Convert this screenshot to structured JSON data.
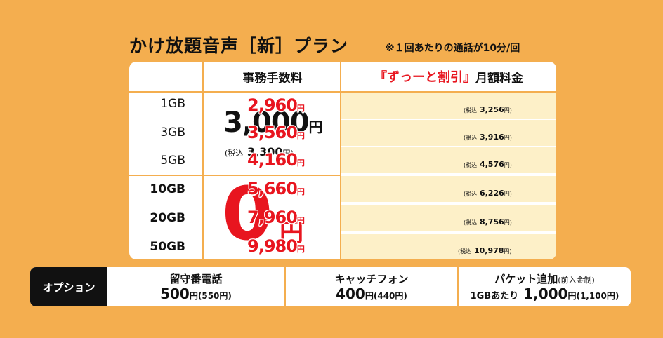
{
  "title": "かけ放題音声［新］プラン",
  "note": "※１回あたりの通話が10分/回",
  "table": {
    "header_fee": "事務手数料",
    "header_price_a": "『ずっーと割引』",
    "header_price_b": "月額料金",
    "rows": [
      {
        "gb": "1GB",
        "price": "2,960",
        "yen": "円",
        "tax_label": "(税込",
        "tax_value": "3,256",
        "tax_yen": "円)"
      },
      {
        "gb": "3GB",
        "price": "3,560",
        "yen": "円",
        "tax_label": "(税込",
        "tax_value": "3,916",
        "tax_yen": "円)"
      },
      {
        "gb": "5GB",
        "price": "4,160",
        "yen": "円",
        "tax_label": "(税込",
        "tax_value": "4,576",
        "tax_yen": "円)"
      },
      {
        "gb": "10GB",
        "price": "5,660",
        "yen": "円",
        "tax_label": "(税込",
        "tax_value": "6,226",
        "tax_yen": "円)"
      },
      {
        "gb": "20GB",
        "price": "7,960",
        "yen": "円",
        "tax_label": "(税込",
        "tax_value": "8,756",
        "tax_yen": "円)"
      },
      {
        "gb": "50GB",
        "price": "9,980",
        "yen": "円",
        "tax_label": "(税込",
        "tax_value": "10,978",
        "tax_yen": "円)"
      }
    ],
    "fee_small": {
      "value": "3,000",
      "yen": "円",
      "tax_label": "(税込",
      "tax_value": "3,300",
      "tax_yen": "円)"
    },
    "fee_large": {
      "value": "0",
      "yen": "円"
    }
  },
  "options": {
    "label": "オプション",
    "items": [
      {
        "name": "留守番電話",
        "price": "500",
        "yen": "円",
        "tax": "(550円)"
      },
      {
        "name": "キャッチフォン",
        "price": "400",
        "yen": "円",
        "tax": "(440円)"
      },
      {
        "name": "パケット追加",
        "name_note": "(前入金制)",
        "pre": "1GBあたり",
        "price": "1,000",
        "yen": "円",
        "tax": "(1,100円)"
      }
    ]
  },
  "colors": {
    "background": "#f4ae4f",
    "accent_red": "#e8151f",
    "price_cell": "#fdf0c8"
  }
}
